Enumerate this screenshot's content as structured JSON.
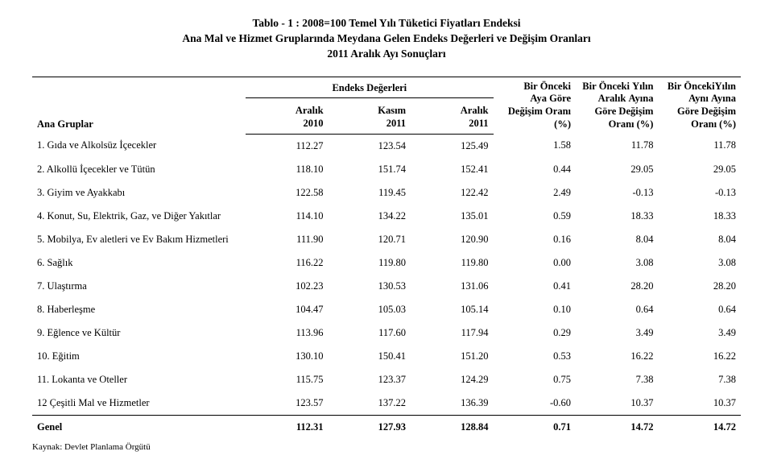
{
  "title": {
    "line1": "Tablo - 1 :   2008=100 Temel Yılı Tüketici Fiyatları Endeksi",
    "line2": "Ana Mal ve Hizmet Gruplarında Meydana Gelen Endeks Değerleri ve Değişim Oranları",
    "line3": "2011 Aralık Ayı Sonuçları"
  },
  "headers": {
    "groups_label": "Ana Gruplar",
    "index_values": "Endeks Değerleri",
    "col1": "Aralık\n2010",
    "col2": "Kasım\n2011",
    "col3": "Aralık\n2011",
    "col4": "Bir Önceki\nAya Göre\nDeğişim Oranı\n(%)",
    "col5": "Bir Önceki Yılın\nAralık Ayına\nGöre Değişim\nOranı (%)",
    "col6": "Bir ÖncekiYılın\nAynı Ayına\nGöre Değişim\nOranı (%)"
  },
  "rows": [
    {
      "label": "1. Gıda ve Alkolsüz İçecekler",
      "v": [
        "112.27",
        "123.54",
        "125.49",
        "1.58",
        "11.78",
        "11.78"
      ]
    },
    {
      "label": "2. Alkollü İçecekler ve Tütün",
      "v": [
        "118.10",
        "151.74",
        "152.41",
        "0.44",
        "29.05",
        "29.05"
      ]
    },
    {
      "label": "3. Giyim ve Ayakkabı",
      "v": [
        "122.58",
        "119.45",
        "122.42",
        "2.49",
        "-0.13",
        "-0.13"
      ]
    },
    {
      "label": "4. Konut, Su, Elektrik, Gaz, ve Diğer Yakıtlar",
      "v": [
        "114.10",
        "134.22",
        "135.01",
        "0.59",
        "18.33",
        "18.33"
      ]
    },
    {
      "label": "5. Mobilya, Ev aletleri ve Ev Bakım Hizmetleri",
      "v": [
        "111.90",
        "120.71",
        "120.90",
        "0.16",
        "8.04",
        "8.04"
      ]
    },
    {
      "label": "6. Sağlık",
      "v": [
        "116.22",
        "119.80",
        "119.80",
        "0.00",
        "3.08",
        "3.08"
      ]
    },
    {
      "label": "7. Ulaştırma",
      "v": [
        "102.23",
        "130.53",
        "131.06",
        "0.41",
        "28.20",
        "28.20"
      ]
    },
    {
      "label": "8. Haberleşme",
      "v": [
        "104.47",
        "105.03",
        "105.14",
        "0.10",
        "0.64",
        "0.64"
      ]
    },
    {
      "label": "9. Eğlence ve Kültür",
      "v": [
        "113.96",
        "117.60",
        "117.94",
        "0.29",
        "3.49",
        "3.49"
      ]
    },
    {
      "label": "10. Eğitim",
      "v": [
        "130.10",
        "150.41",
        "151.20",
        "0.53",
        "16.22",
        "16.22"
      ]
    },
    {
      "label": "11. Lokanta ve Oteller",
      "v": [
        "115.75",
        "123.37",
        "124.29",
        "0.75",
        "7.38",
        "7.38"
      ]
    },
    {
      "label": "12 Çeşitli Mal ve Hizmetler",
      "v": [
        "123.57",
        "137.22",
        "136.39",
        "-0.60",
        "10.37",
        "10.37"
      ]
    }
  ],
  "total": {
    "label": "Genel",
    "v": [
      "112.31",
      "127.93",
      "128.84",
      "0.71",
      "14.72",
      "14.72"
    ]
  },
  "source": "Kaynak: Devlet Planlama Örgütü"
}
